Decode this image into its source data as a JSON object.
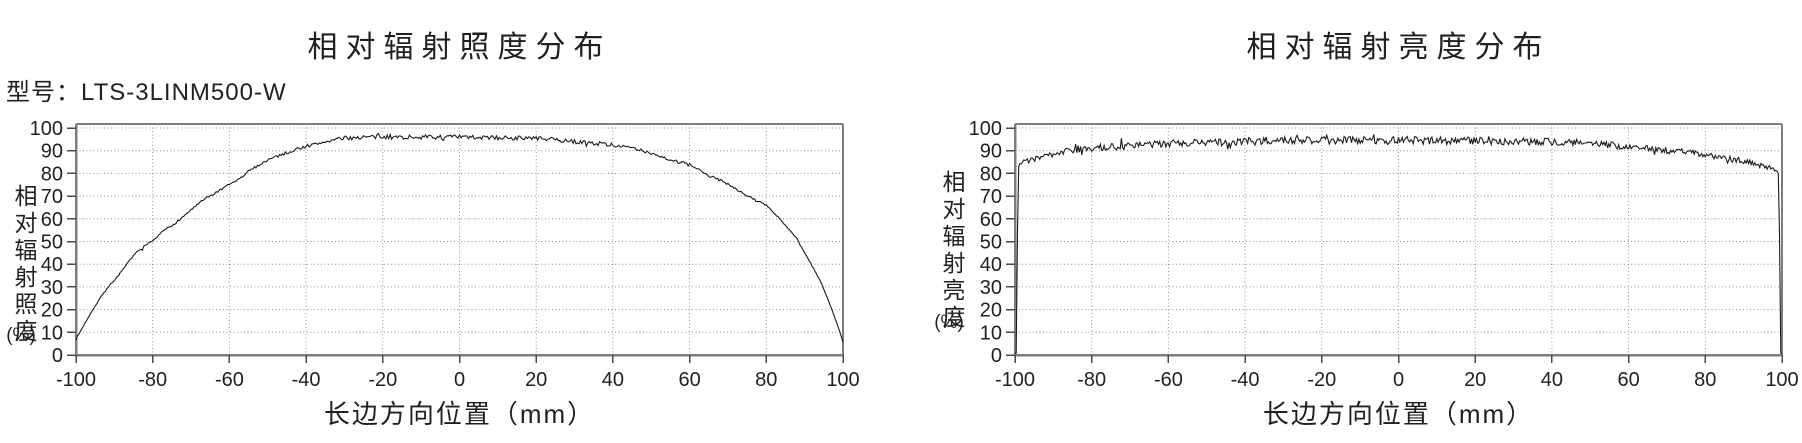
{
  "page": {
    "background": "#ffffff",
    "text_color": "#231f20",
    "grid_color": "#909090",
    "axis_color": "#7d7d7d",
    "model_label": "型号：LTS-3LINM500-W"
  },
  "chart_data": [
    {
      "type": "line",
      "title": "相对辐射照度分布",
      "xlabel": "长边方向位置（mm）",
      "ylabel": "相对辐射照度",
      "ylabel_unit": "(%)",
      "xlim": [
        -100,
        100
      ],
      "ylim": [
        0,
        100
      ],
      "x_ticks": [
        -100,
        -80,
        -60,
        -40,
        -20,
        0,
        20,
        40,
        60,
        80,
        100
      ],
      "y_ticks": [
        0,
        10,
        20,
        30,
        40,
        50,
        60,
        70,
        80,
        90,
        100
      ],
      "grid": "dotted",
      "legend": "none",
      "line_color": "#1c1c1c",
      "noise": {
        "amplitude": 1.0,
        "seed": 7,
        "samples": 520,
        "spike_chance": 0.05,
        "spike_scale": 1.6
      },
      "series": [
        {
          "name": "relative-irradiance",
          "points": [
            [
              -100,
              7
            ],
            [
              -98,
              13
            ],
            [
              -96,
              19
            ],
            [
              -93,
              27
            ],
            [
              -90,
              33
            ],
            [
              -88,
              37
            ],
            [
              -85,
              44
            ],
            [
              -82,
              48
            ],
            [
              -80,
              50
            ],
            [
              -77,
              55
            ],
            [
              -75,
              57
            ],
            [
              -72,
              61
            ],
            [
              -70,
              64
            ],
            [
              -67,
              68
            ],
            [
              -65,
              70
            ],
            [
              -62,
              73
            ],
            [
              -60,
              75
            ],
            [
              -57,
              78
            ],
            [
              -55,
              81
            ],
            [
              -52,
              84
            ],
            [
              -50,
              86
            ],
            [
              -47,
              88
            ],
            [
              -45,
              89
            ],
            [
              -42,
              91
            ],
            [
              -40,
              92
            ],
            [
              -37,
              93
            ],
            [
              -35,
              94
            ],
            [
              -32,
              95
            ],
            [
              -30,
              95.5
            ],
            [
              -25,
              96
            ],
            [
              -20,
              96
            ],
            [
              -15,
              96
            ],
            [
              -10,
              96
            ],
            [
              -5,
              96
            ],
            [
              0,
              96
            ],
            [
              5,
              95.8
            ],
            [
              10,
              95.7
            ],
            [
              15,
              95.6
            ],
            [
              20,
              95.5
            ],
            [
              25,
              94.8
            ],
            [
              30,
              94
            ],
            [
              35,
              93.3
            ],
            [
              40,
              92.6
            ],
            [
              45,
              91
            ],
            [
              50,
              89
            ],
            [
              55,
              86
            ],
            [
              60,
              83.7
            ],
            [
              65,
              79
            ],
            [
              70,
              75.5
            ],
            [
              75,
              70
            ],
            [
              80,
              66
            ],
            [
              83,
              61
            ],
            [
              85,
              57
            ],
            [
              88,
              51
            ],
            [
              90,
              45
            ],
            [
              92,
              39
            ],
            [
              94,
              33
            ],
            [
              96,
              25
            ],
            [
              98,
              16
            ],
            [
              100,
              6
            ]
          ]
        }
      ]
    },
    {
      "type": "line",
      "title": "相对辐射亮度分布",
      "xlabel": "长边方向位置（mm）",
      "ylabel": "相对辐射亮度",
      "ylabel_unit": "(%)",
      "xlim": [
        -100,
        100
      ],
      "ylim": [
        0,
        100
      ],
      "x_ticks": [
        -100,
        -80,
        -60,
        -40,
        -20,
        0,
        20,
        40,
        60,
        80,
        100
      ],
      "y_ticks": [
        0,
        10,
        20,
        30,
        40,
        50,
        60,
        70,
        80,
        90,
        100
      ],
      "grid": "dotted",
      "legend": "none",
      "line_color": "#1c1c1c",
      "noise": {
        "amplitude": 1.7,
        "seed": 3,
        "samples": 620,
        "spike_chance": 0.07,
        "spike_scale": 1.7
      },
      "series": [
        {
          "name": "relative-radiance",
          "points": [
            [
              -100,
              0.5
            ],
            [
              -99.6,
              1
            ],
            [
              -99.45,
              40
            ],
            [
              -99.2,
              78
            ],
            [
              -99,
              84
            ],
            [
              -98,
              85
            ],
            [
              -97,
              85.5
            ],
            [
              -95,
              86.5
            ],
            [
              -93,
              87.5
            ],
            [
              -91,
              88
            ],
            [
              -89,
              89
            ],
            [
              -87,
              89.5
            ],
            [
              -85,
              90
            ],
            [
              -83,
              90.5
            ],
            [
              -81,
              91
            ],
            [
              -78,
              91.3
            ],
            [
              -75,
              91.7
            ],
            [
              -72,
              92
            ],
            [
              -69,
              92.3
            ],
            [
              -66,
              92.6
            ],
            [
              -63,
              92.9
            ],
            [
              -60,
              93.1
            ],
            [
              -56,
              93.4
            ],
            [
              -52,
              93.7
            ],
            [
              -48,
              93.9
            ],
            [
              -44,
              94.1
            ],
            [
              -40,
              94.2
            ],
            [
              -35,
              94.4
            ],
            [
              -30,
              94.5
            ],
            [
              -25,
              94.5
            ],
            [
              -20,
              94.6
            ],
            [
              -15,
              94.6
            ],
            [
              -10,
              94.6
            ],
            [
              -5,
              94.5
            ],
            [
              0,
              94.5
            ],
            [
              5,
              94.5
            ],
            [
              10,
              94.4
            ],
            [
              15,
              94.4
            ],
            [
              20,
              94.3
            ],
            [
              25,
              94.2
            ],
            [
              30,
              94.1
            ],
            [
              35,
              94
            ],
            [
              40,
              93.9
            ],
            [
              44,
              93.6
            ],
            [
              48,
              93.3
            ],
            [
              52,
              92.9
            ],
            [
              56,
              92.4
            ],
            [
              60,
              91.8
            ],
            [
              64,
              91.2
            ],
            [
              68,
              90.5
            ],
            [
              72,
              89.8
            ],
            [
              76,
              89
            ],
            [
              80,
              88.2
            ],
            [
              84,
              87.2
            ],
            [
              88,
              86
            ],
            [
              91,
              85
            ],
            [
              94,
              83.8
            ],
            [
              96,
              82.8
            ],
            [
              98,
              81.6
            ],
            [
              99,
              80.8
            ],
            [
              99.2,
              75
            ],
            [
              99.45,
              40
            ],
            [
              99.6,
              1
            ],
            [
              100,
              0.5
            ]
          ]
        }
      ]
    }
  ]
}
